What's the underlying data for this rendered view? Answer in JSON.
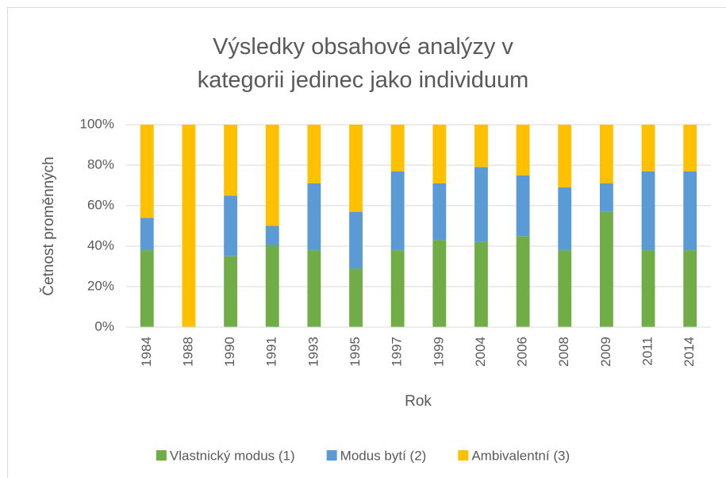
{
  "chart_data": {
    "type": "stacked_bar",
    "title": "Výsledky obsahové analýzy v kategorii jedinec jako individuum",
    "x_label": "Rok",
    "y_label": "Četnost proměnných",
    "categories": [
      "1984",
      "1988",
      "1990",
      "1991",
      "1993",
      "1995",
      "1997",
      "1999",
      "2004",
      "2006",
      "2008",
      "2009",
      "2011",
      "2014"
    ],
    "series": [
      {
        "name": "Vlastnický modus (1)",
        "color": "#70ad47",
        "values": [
          38,
          0,
          35,
          40,
          38,
          29,
          38,
          43,
          42,
          45,
          38,
          57,
          38,
          38
        ]
      },
      {
        "name": "Modus bytí (2)",
        "color": "#5b9bd5",
        "values": [
          16,
          0,
          30,
          10,
          33,
          28,
          39,
          28,
          37,
          30,
          31,
          14,
          39,
          39
        ]
      },
      {
        "name": "Ambivalentní (3)",
        "color": "#ffc000",
        "values": [
          46,
          100,
          35,
          50,
          29,
          43,
          23,
          29,
          21,
          25,
          31,
          29,
          23,
          23
        ]
      }
    ],
    "ylim": [
      0,
      100
    ],
    "yticks": [
      {
        "value": 0,
        "label": "0%"
      },
      {
        "value": 20,
        "label": "20%"
      },
      {
        "value": 40,
        "label": "40%"
      },
      {
        "value": 60,
        "label": "60%"
      },
      {
        "value": 80,
        "label": "80%"
      },
      {
        "value": 100,
        "label": "100%"
      }
    ],
    "grid": true,
    "legend": "bottom"
  }
}
